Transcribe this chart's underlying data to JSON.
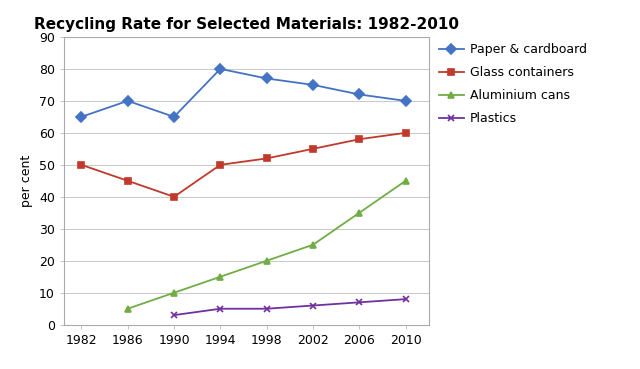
{
  "title": "Recycling Rate for Selected Materials: 1982-2010",
  "ylabel": "per cent",
  "years": [
    1982,
    1986,
    1990,
    1994,
    1998,
    2002,
    2006,
    2010
  ],
  "series": [
    {
      "label": "Paper & cardboard",
      "values": [
        65,
        70,
        65,
        80,
        77,
        75,
        72,
        70
      ],
      "color": "#4472C4",
      "marker": "D",
      "markersize": 5,
      "linewidth": 1.3
    },
    {
      "label": "Glass containers",
      "values": [
        50,
        45,
        40,
        50,
        52,
        55,
        58,
        60
      ],
      "color": "#C0392B",
      "marker": "s",
      "markersize": 5,
      "linewidth": 1.3
    },
    {
      "label": "Aluminium cans",
      "values": [
        null,
        5,
        10,
        15,
        20,
        25,
        35,
        45
      ],
      "color": "#70AD47",
      "marker": "^",
      "markersize": 5,
      "linewidth": 1.3
    },
    {
      "label": "Plastics",
      "values": [
        null,
        null,
        3,
        5,
        5,
        6,
        7,
        8
      ],
      "color": "#7030A0",
      "marker": "x",
      "markersize": 5,
      "linewidth": 1.3
    }
  ],
  "ylim": [
    0,
    90
  ],
  "yticks": [
    0,
    10,
    20,
    30,
    40,
    50,
    60,
    70,
    80,
    90
  ],
  "xticks": [
    1982,
    1986,
    1990,
    1994,
    1998,
    2002,
    2006,
    2010
  ],
  "xlim": [
    1980.5,
    2012
  ],
  "grid": true,
  "background_color": "#ffffff",
  "title_fontsize": 11,
  "axis_fontsize": 9,
  "legend_fontsize": 9
}
